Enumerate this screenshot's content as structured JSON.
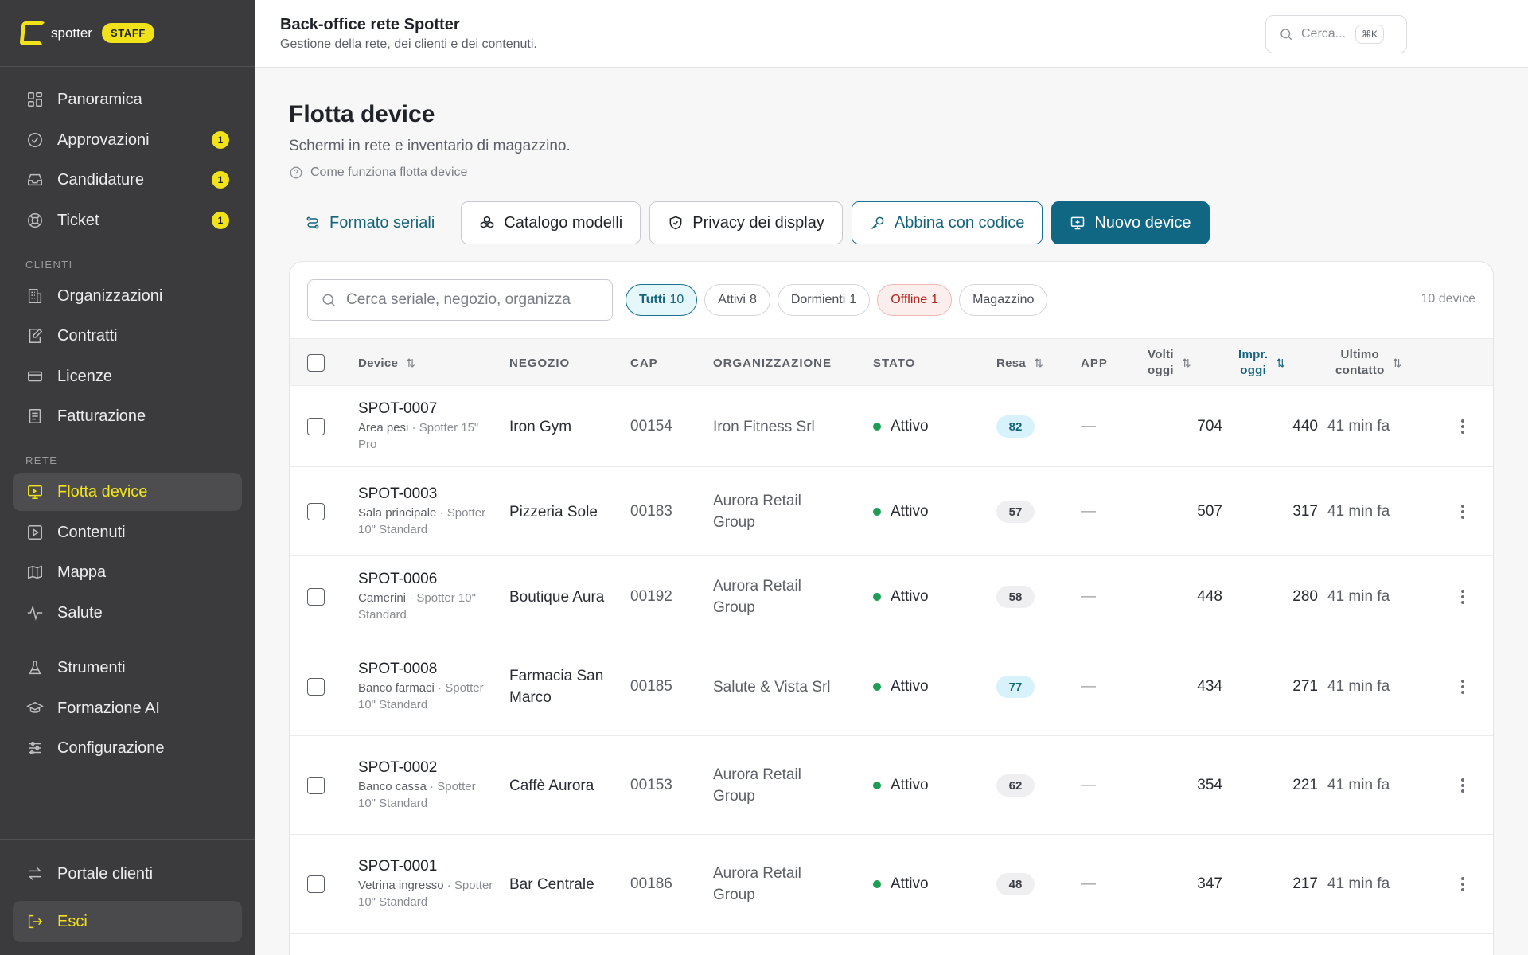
{
  "brand": {
    "name": "spotter",
    "badge": "STAFF"
  },
  "sidebar": {
    "primary": [
      {
        "label": "Panoramica",
        "icon": "grid-icon"
      },
      {
        "label": "Approvazioni",
        "icon": "check-circle-icon",
        "count": "1"
      },
      {
        "label": "Candidature",
        "icon": "inbox-icon",
        "count": "1"
      },
      {
        "label": "Ticket",
        "icon": "lifebuoy-icon",
        "count": "1"
      }
    ],
    "clienti_label": "CLIENTI",
    "clienti": [
      {
        "label": "Organizzazioni",
        "icon": "building-icon"
      },
      {
        "label": "Contratti",
        "icon": "edit-document-icon"
      },
      {
        "label": "Licenze",
        "icon": "card-icon"
      },
      {
        "label": "Fatturazione",
        "icon": "receipt-icon"
      }
    ],
    "rete_label": "RETE",
    "rete": [
      {
        "label": "Flotta device",
        "icon": "monitor-icon",
        "active": true
      },
      {
        "label": "Contenuti",
        "icon": "play-square-icon"
      },
      {
        "label": "Mappa",
        "icon": "map-icon"
      },
      {
        "label": "Salute",
        "icon": "pulse-icon"
      }
    ],
    "tools": [
      {
        "label": "Strumenti",
        "icon": "flask-icon"
      },
      {
        "label": "Formazione AI",
        "icon": "graduation-cap-icon"
      },
      {
        "label": "Configurazione",
        "icon": "sliders-icon"
      }
    ],
    "bottom": [
      {
        "label": "Portale clienti",
        "icon": "swap-arrows-icon"
      },
      {
        "label": "Esci",
        "icon": "logout-icon"
      }
    ]
  },
  "topbar": {
    "title": "Back-office rete Spotter",
    "subtitle": "Gestione della rete, dei clienti e dei contenuti.",
    "search_placeholder": "Cerca...",
    "search_shortcut": "⌘K"
  },
  "page": {
    "title": "Flotta device",
    "subtitle": "Schermi in rete e inventario di magazzino.",
    "help": "Come funziona flotta device"
  },
  "actions": {
    "serial_format": "Formato seriali",
    "model_catalog": "Catalogo modelli",
    "display_privacy": "Privacy dei display",
    "pair_code": "Abbina con codice",
    "new_device": "Nuovo device"
  },
  "filters": {
    "search_placeholder": "Cerca seriale, negozio, organizza",
    "chips": [
      {
        "label": "Tutti",
        "count": "10",
        "active": true
      },
      {
        "label": "Attivi",
        "count": "8"
      },
      {
        "label": "Dormienti",
        "count": "1"
      },
      {
        "label": "Offline",
        "count": "1",
        "variant": "offline"
      },
      {
        "label": "Magazzino",
        "count": ""
      }
    ],
    "device_count": "10 device"
  },
  "table": {
    "columns": {
      "device": "Device",
      "negozio": "NEGOZIO",
      "cap": "CAP",
      "organizzazione": "ORGANIZZAZIONE",
      "stato": "STATO",
      "resa": "Resa",
      "app": "APP",
      "volti_1": "Volti",
      "volti_2": "oggi",
      "impr_1": "Impr.",
      "impr_2": "oggi",
      "ultimo_1": "Ultimo",
      "ultimo_2": "contatto",
      "sort_glyph": "⇅"
    },
    "rows": [
      {
        "id": "SPOT-0007",
        "loc": "Area pesi",
        "model": "Spotter 15\" Pro",
        "shop": "Iron Gym",
        "cap": "00154",
        "org": "Iron Fitness Srl",
        "status": "Attivo",
        "resa": "82",
        "resa_high": true,
        "app": "—",
        "volti": "704",
        "impr": "440",
        "last": "41 min fa"
      },
      {
        "id": "SPOT-0003",
        "loc": "Sala principale",
        "model": "Spotter 10\" Standard",
        "shop": "Pizzeria Sole",
        "cap": "00183",
        "org": "Aurora Retail Group",
        "status": "Attivo",
        "resa": "57",
        "resa_high": false,
        "app": "—",
        "volti": "507",
        "impr": "317",
        "last": "41 min fa"
      },
      {
        "id": "SPOT-0006",
        "loc": "Camerini",
        "model": "Spotter 10\" Standard",
        "shop": "Boutique Aura",
        "cap": "00192",
        "org": "Aurora Retail Group",
        "status": "Attivo",
        "resa": "58",
        "resa_high": false,
        "app": "—",
        "volti": "448",
        "impr": "280",
        "last": "41 min fa"
      },
      {
        "id": "SPOT-0008",
        "loc": "Banco farmaci",
        "model": "Spotter 10\" Standard",
        "shop": "Farmacia San Marco",
        "cap": "00185",
        "org": "Salute & Vista Srl",
        "status": "Attivo",
        "resa": "77",
        "resa_high": true,
        "app": "—",
        "volti": "434",
        "impr": "271",
        "last": "41 min fa"
      },
      {
        "id": "SPOT-0002",
        "loc": "Banco cassa",
        "model": "Spotter 10\" Standard",
        "shop": "Caffè Aurora",
        "cap": "00153",
        "org": "Aurora Retail Group",
        "status": "Attivo",
        "resa": "62",
        "resa_high": false,
        "app": "—",
        "volti": "354",
        "impr": "221",
        "last": "41 min fa"
      },
      {
        "id": "SPOT-0001",
        "loc": "Vetrina ingresso",
        "model": "Spotter 10\" Standard",
        "shop": "Bar Centrale",
        "cap": "00186",
        "org": "Aurora Retail Group",
        "status": "Attivo",
        "resa": "48",
        "resa_high": false,
        "app": "—",
        "volti": "347",
        "impr": "217",
        "last": "41 min fa"
      }
    ]
  }
}
